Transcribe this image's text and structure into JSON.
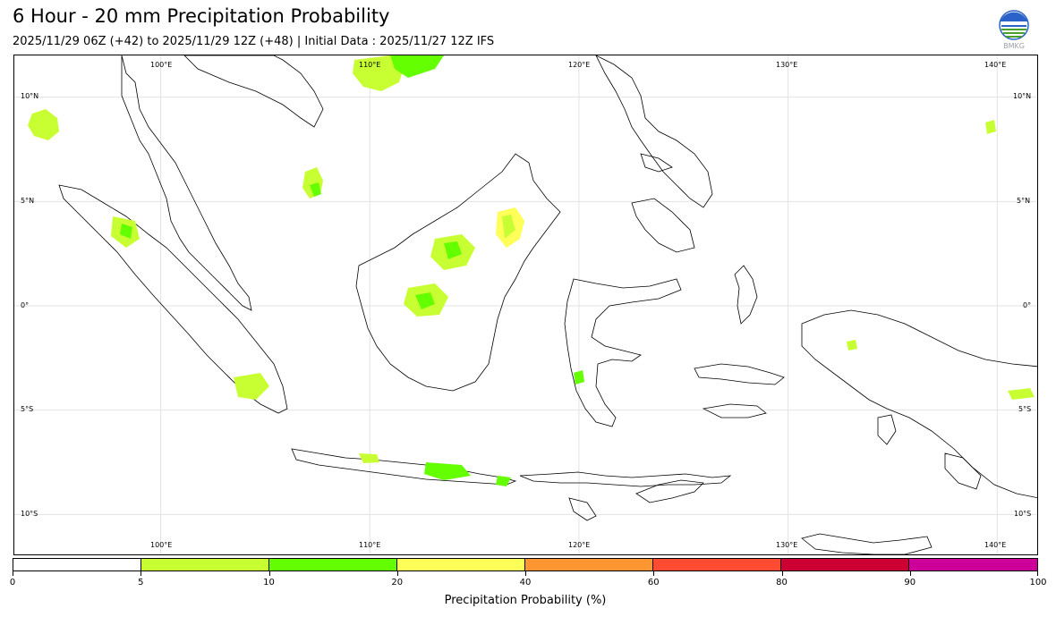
{
  "header": {
    "title": "6 Hour - 20 mm Precipitation Probability",
    "subtitle": "2025/11/29 06Z (+42) to 2025/11/29 12Z (+48) | Initial Data : 2025/11/27 12Z IFS",
    "logo_text": "BMKG"
  },
  "map": {
    "lon_labels": [
      "100°E",
      "110°E",
      "120°E",
      "130°E",
      "140°E"
    ],
    "lat_labels": [
      "10°N",
      "5°N",
      "0°",
      "5°S",
      "10°S"
    ],
    "lon_values": [
      100,
      110,
      120,
      130,
      140
    ],
    "lat_values": [
      10,
      5,
      0,
      -5,
      -10
    ],
    "extent": {
      "lon": [
        93,
        142
      ],
      "lat": [
        -12,
        12
      ]
    },
    "gridlines": true,
    "land_outline_color": "#000000",
    "prob_colors": {
      "5-10": "#c8ff32",
      "10-20": "#64ff00"
    }
  },
  "colorbar": {
    "title": "Precipitation Probability (%)",
    "bounds": [
      "0",
      "5",
      "10",
      "20",
      "40",
      "60",
      "80",
      "90",
      "100"
    ],
    "colors": [
      "#ffffff",
      "#c8ff32",
      "#64ff00",
      "#ffff5a",
      "#ff9632",
      "#ff4b32",
      "#cd0033",
      "#cc0099"
    ]
  }
}
